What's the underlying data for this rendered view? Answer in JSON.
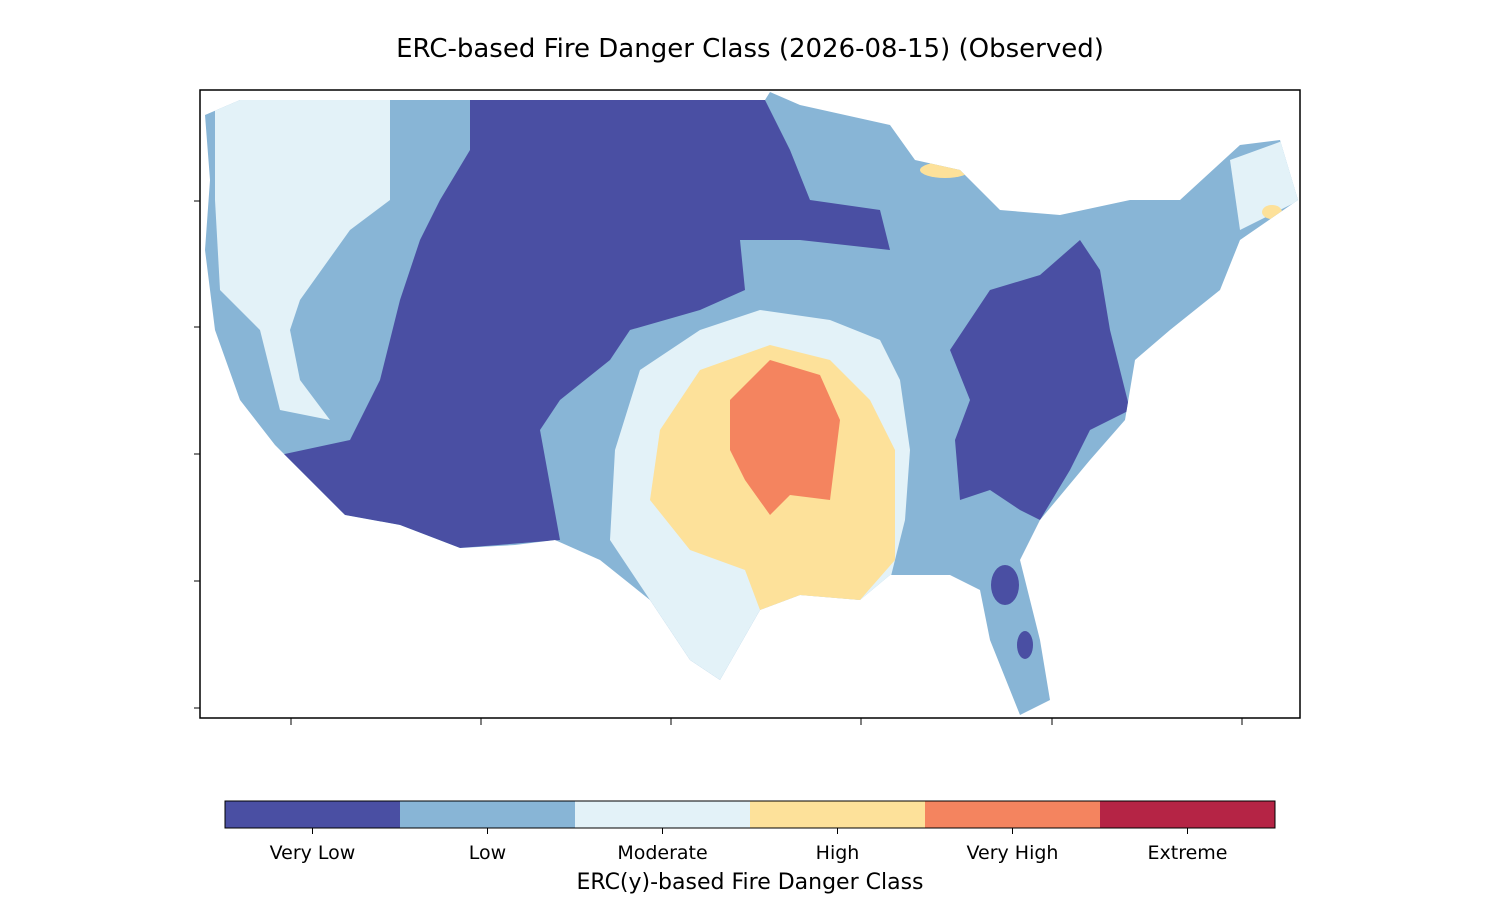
{
  "title": "ERC-based Fire Danger Class (2026-08-15) (Observed)",
  "colorbar": {
    "label": "ERC(y)-based Fire Danger Class",
    "classes": [
      {
        "name": "Very Low",
        "color": "#4a4fa3"
      },
      {
        "name": "Low",
        "color": "#88b5d6"
      },
      {
        "name": "Moderate",
        "color": "#e3f2f8"
      },
      {
        "name": "High",
        "color": "#fde19a"
      },
      {
        "name": "Very High",
        "color": "#f4845f"
      },
      {
        "name": "Extreme",
        "color": "#b52445"
      }
    ]
  }
}
